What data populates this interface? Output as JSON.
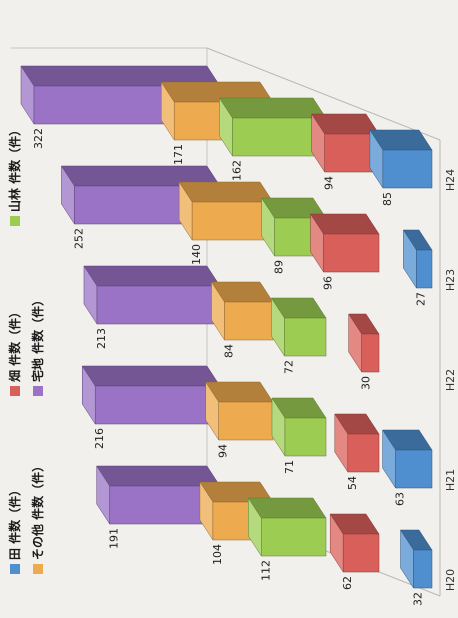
{
  "chart_data": {
    "type": "bar",
    "categories": [
      "H20",
      "H21",
      "H22",
      "H23",
      "H24"
    ],
    "series": [
      {
        "name": "田 件数（件）",
        "color": "#4f8fcf",
        "values": [
          32,
          63,
          null,
          27,
          85
        ]
      },
      {
        "name": "畑 件数（件）",
        "color": "#d9605a",
        "values": [
          62,
          54,
          30,
          96,
          94
        ]
      },
      {
        "name": "山林 件数（件）",
        "color": "#9ccc52",
        "values": [
          112,
          71,
          72,
          89,
          162
        ]
      },
      {
        "name": "その他 件数（件）",
        "color": "#eeaa4f",
        "values": [
          104,
          94,
          84,
          140,
          171
        ]
      },
      {
        "name": "宅地 件数（件）",
        "color": "#9a73c6",
        "values": [
          191,
          216,
          213,
          252,
          322
        ]
      }
    ],
    "title": "",
    "xlabel": "",
    "ylabel": "",
    "ylim": [
      0,
      340
    ],
    "grid": false,
    "legend_position": "top"
  }
}
